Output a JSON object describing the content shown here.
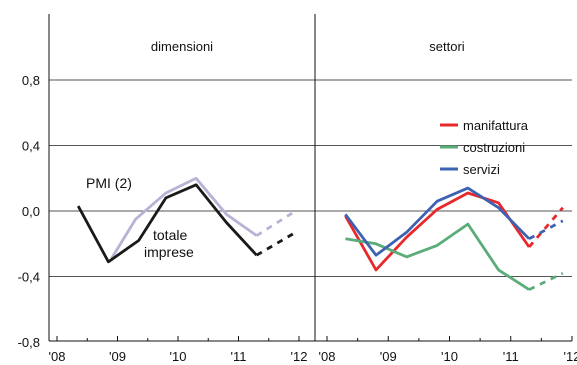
{
  "chart_data": {
    "type": "line",
    "ylim": [
      -0.8,
      1.2
    ],
    "y_ticks": [
      "0,8",
      "0,4",
      "0,0",
      "-0,4",
      "-0,8"
    ],
    "y_tick_values": [
      0.8,
      0.4,
      0.0,
      -0.4,
      -0.8
    ],
    "grid": "horizontal",
    "colors": {
      "manifattura": "#e8282b",
      "costruzioni": "#5aac78",
      "servizi": "#3e62b2",
      "totale": "#1a1a1a",
      "pmi": "#b9b1d6"
    },
    "panels": [
      {
        "id": "dimensioni",
        "title": "dimensioni",
        "x_ticks": [
          "'08",
          "'09",
          "'10",
          "'11",
          "'12"
        ],
        "series": [
          {
            "id": "pmi",
            "name": "PMI (2)",
            "color_key": "pmi",
            "x": [
              2008.9,
              2009.3,
              2009.8,
              2010.3,
              2010.8,
              2011.3
            ],
            "y": [
              -0.29,
              -0.05,
              0.11,
              0.2,
              -0.02,
              -0.15
            ],
            "forecast_x": [
              2011.3,
              2011.9
            ],
            "forecast_y": [
              -0.15,
              -0.01
            ]
          },
          {
            "id": "totale",
            "name": "totale imprese",
            "color_key": "totale",
            "x": [
              2008.35,
              2008.85,
              2009.35,
              2009.8,
              2010.3,
              2010.8,
              2011.3
            ],
            "y": [
              0.03,
              -0.31,
              -0.18,
              0.08,
              0.16,
              -0.07,
              -0.27
            ],
            "forecast_x": [
              2011.3,
              2011.9
            ],
            "forecast_y": [
              -0.27,
              -0.14
            ]
          }
        ]
      },
      {
        "id": "settori",
        "title": "settori",
        "x_ticks": [
          "'08",
          "'09",
          "'10",
          "'11",
          "'12"
        ],
        "series": [
          {
            "id": "manifattura",
            "name": "manifattura",
            "color_key": "manifattura",
            "x": [
              2008.3,
              2008.8,
              2009.3,
              2009.8,
              2010.3,
              2010.8,
              2011.3
            ],
            "y": [
              -0.03,
              -0.36,
              -0.16,
              0.01,
              0.11,
              0.05,
              -0.22
            ],
            "forecast_x": [
              2011.3,
              2011.85
            ],
            "forecast_y": [
              -0.22,
              0.02
            ]
          },
          {
            "id": "costruzioni",
            "name": "costruzioni",
            "color_key": "costruzioni",
            "x": [
              2008.3,
              2008.8,
              2009.3,
              2009.8,
              2010.3,
              2010.8,
              2011.3
            ],
            "y": [
              -0.17,
              -0.2,
              -0.28,
              -0.21,
              -0.08,
              -0.36,
              -0.48
            ],
            "forecast_x": [
              2011.3,
              2011.85
            ],
            "forecast_y": [
              -0.48,
              -0.38
            ]
          },
          {
            "id": "servizi",
            "name": "servizi",
            "color_key": "servizi",
            "x": [
              2008.3,
              2008.8,
              2009.3,
              2009.8,
              2010.3,
              2010.8,
              2011.3
            ],
            "y": [
              -0.02,
              -0.27,
              -0.13,
              0.06,
              0.14,
              0.02,
              -0.17
            ],
            "forecast_x": [
              2011.3,
              2011.85
            ],
            "forecast_y": [
              -0.17,
              -0.06
            ]
          }
        ]
      }
    ]
  }
}
